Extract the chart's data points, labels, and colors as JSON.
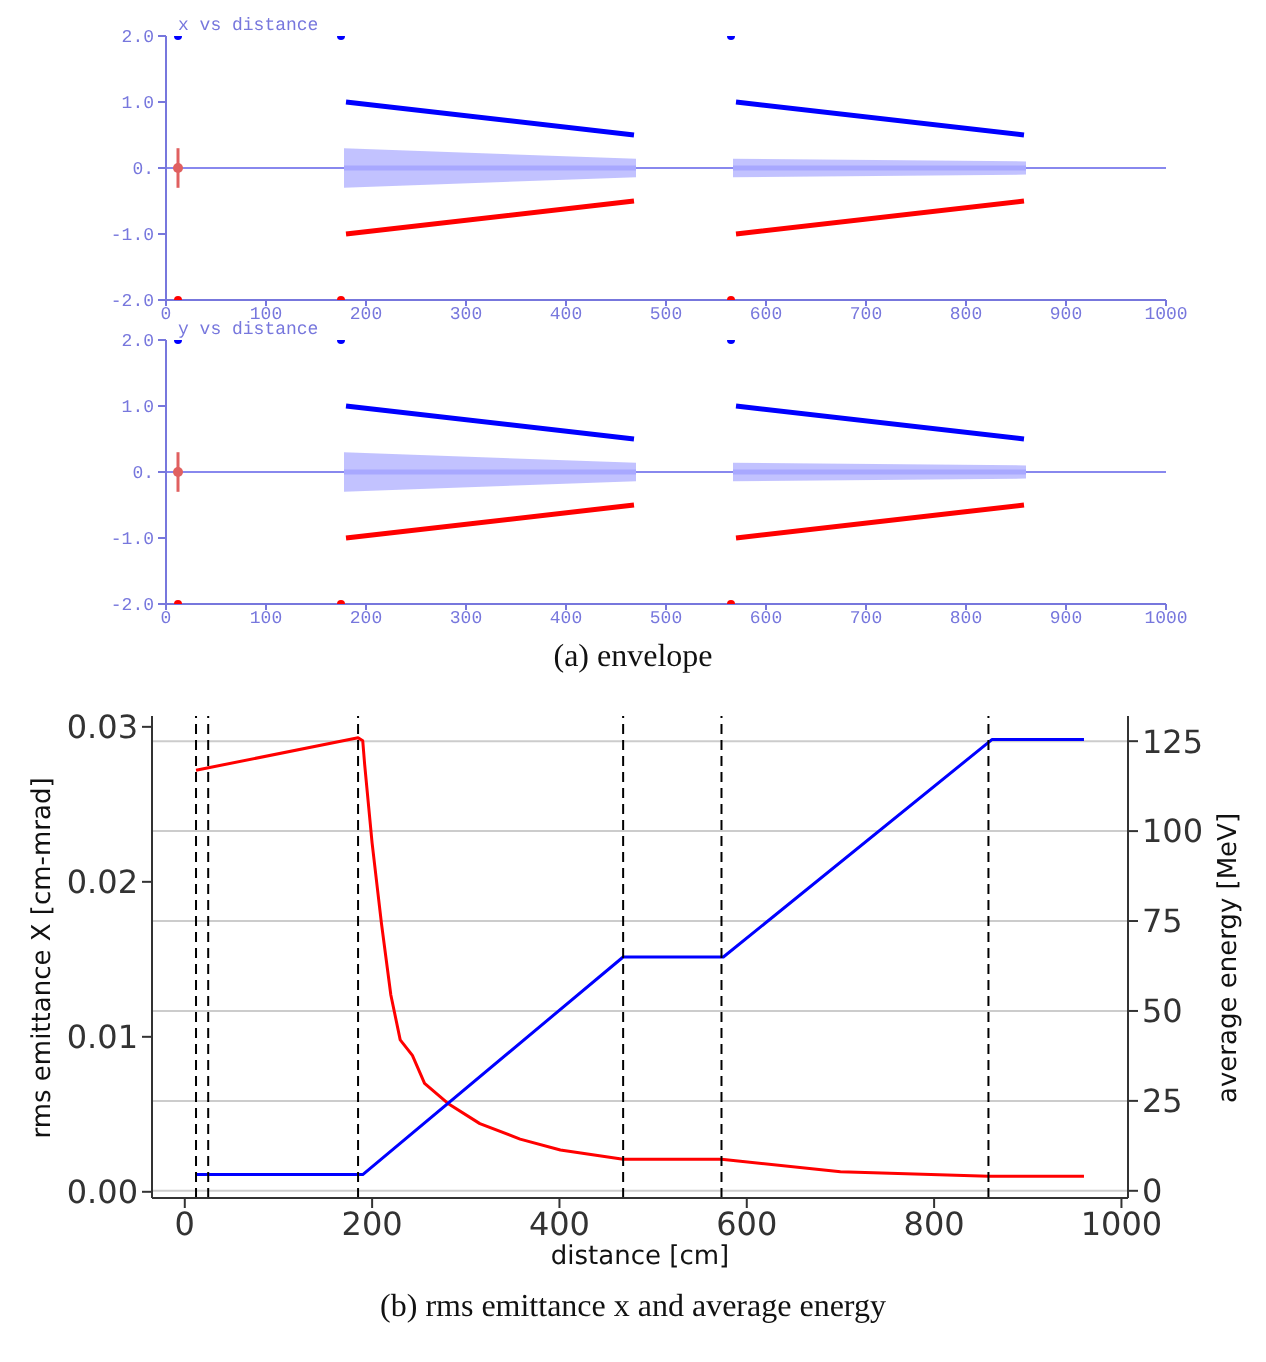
{
  "chart_data": [
    {
      "type": "line",
      "title": "x vs distance",
      "xlim": [
        0,
        1000
      ],
      "xticks": [
        0,
        100,
        200,
        300,
        400,
        500,
        600,
        700,
        800,
        900,
        1000
      ],
      "ylim": [
        -2,
        2
      ],
      "yticks": [
        {
          "value": -2,
          "label": "-2.0"
        },
        {
          "value": -1,
          "label": "-1.0"
        },
        {
          "value": 0,
          "label": "0."
        },
        {
          "value": 1,
          "label": "1.0"
        },
        {
          "value": 2,
          "label": "2.0"
        }
      ],
      "ref_lines": [
        {
          "axis": "y",
          "value": 0,
          "color": "#8888ee"
        }
      ],
      "series": [
        {
          "color": "#a8a8ff",
          "x": [
            178,
            470,
            518,
            567,
            860
          ],
          "values": [
            0,
            0,
            null,
            0,
            0
          ],
          "lower": [
            -0.3,
            -0.14,
            null,
            -0.14,
            -0.1
          ],
          "upper": [
            0.3,
            0.14,
            null,
            0.14,
            0.1
          ]
        },
        {
          "type": "scatter",
          "color": "#e06060",
          "x": [
            12
          ],
          "values": [
            0
          ],
          "errors": [
            0.3
          ]
        },
        {
          "color": "#0000ff",
          "x": [
            180,
            468,
            519,
            570,
            858
          ],
          "values": [
            1.0,
            0.5,
            null,
            1.0,
            0.5
          ]
        },
        {
          "color": "#ff0000",
          "x": [
            180,
            468,
            519,
            570,
            858
          ],
          "values": [
            -1.0,
            -0.5,
            null,
            -1.0,
            -0.5
          ]
        },
        {
          "type": "scatter",
          "color": "#0000ff",
          "x": [
            12,
            175,
            565
          ],
          "values": [
            2,
            2,
            2
          ]
        },
        {
          "type": "scatter",
          "color": "#ff0000",
          "x": [
            12,
            175,
            565
          ],
          "values": [
            -2,
            -2,
            -2
          ]
        }
      ]
    },
    {
      "type": "line",
      "title": "y vs distance",
      "xlim": [
        0,
        1000
      ],
      "xticks": [
        0,
        100,
        200,
        300,
        400,
        500,
        600,
        700,
        800,
        900,
        1000
      ],
      "ylim": [
        -2,
        2
      ],
      "yticks": [
        {
          "value": -2,
          "label": "-2.0"
        },
        {
          "value": -1,
          "label": "-1.0"
        },
        {
          "value": 0,
          "label": "0."
        },
        {
          "value": 1,
          "label": "1.0"
        },
        {
          "value": 2,
          "label": "2.0"
        }
      ],
      "annotations": [
        "(a) envelope"
      ],
      "ref_lines": [
        {
          "axis": "y",
          "value": 0,
          "color": "#8888ee"
        }
      ],
      "series": [
        {
          "color": "#a8a8ff",
          "x": [
            178,
            470,
            518,
            567,
            860
          ],
          "values": [
            0,
            0,
            null,
            0,
            0
          ],
          "lower": [
            -0.3,
            -0.14,
            null,
            -0.14,
            -0.1
          ],
          "upper": [
            0.3,
            0.14,
            null,
            0.14,
            0.1
          ]
        },
        {
          "type": "scatter",
          "color": "#e06060",
          "x": [
            12
          ],
          "values": [
            0
          ],
          "errors": [
            0.3
          ]
        },
        {
          "color": "#0000ff",
          "x": [
            180,
            468,
            519,
            570,
            858
          ],
          "values": [
            1.0,
            0.5,
            null,
            1.0,
            0.5
          ]
        },
        {
          "color": "#ff0000",
          "x": [
            180,
            468,
            519,
            570,
            858
          ],
          "values": [
            -1.0,
            -0.5,
            null,
            -1.0,
            -0.5
          ]
        },
        {
          "type": "scatter",
          "color": "#0000ff",
          "x": [
            12,
            175,
            565
          ],
          "values": [
            2,
            2,
            2
          ]
        },
        {
          "type": "scatter",
          "color": "#ff0000",
          "x": [
            12,
            175,
            565
          ],
          "values": [
            -2,
            -2,
            -2
          ]
        }
      ]
    },
    {
      "type": "line",
      "xlabel": "distance [cm]",
      "ylabel": "rms emittance X [cm-mrad]",
      "y2label": "average energy [MeV]",
      "xlim": [
        -35,
        1007
      ],
      "xticks": [
        0,
        200,
        400,
        600,
        800,
        1000
      ],
      "ylim": [
        -0.0004,
        0.0307
      ],
      "yticks": [
        {
          "value": 0,
          "label": "0.00"
        },
        {
          "value": 0.01,
          "label": "0.01"
        },
        {
          "value": 0.02,
          "label": "0.02"
        },
        {
          "value": 0.03,
          "label": "0.03"
        }
      ],
      "y2lim": [
        -2,
        132
      ],
      "y2ticks": [
        0,
        25,
        50,
        75,
        100,
        125
      ],
      "grid": "y",
      "annotations": [
        "(b)  rms emittance x and average energy"
      ],
      "ref_lines": [
        {
          "axis": "x",
          "value": 12,
          "color": "#000000",
          "line_style": "dashed"
        },
        {
          "axis": "x",
          "value": 25,
          "color": "#000000",
          "line_style": "dashed"
        },
        {
          "axis": "x",
          "value": 185,
          "color": "#000000",
          "line_style": "dashed"
        },
        {
          "axis": "x",
          "value": 468,
          "color": "#000000",
          "line_style": "dashed"
        },
        {
          "axis": "x",
          "value": 573,
          "color": "#000000",
          "line_style": "dashed"
        },
        {
          "axis": "x",
          "value": 858,
          "color": "#000000",
          "line_style": "dashed"
        }
      ],
      "series": [
        {
          "color": "#ff0000",
          "x": [
            12,
            185,
            190,
            192,
            200,
            210,
            220,
            230,
            243,
            256,
            281,
            315,
            358,
            401,
            468,
            573,
            700,
            858,
            960
          ],
          "values": [
            0.0272,
            0.0293,
            0.0291,
            0.0276,
            0.0225,
            0.0173,
            0.0127,
            0.0098,
            0.0088,
            0.007,
            0.0057,
            0.0044,
            0.0034,
            0.0027,
            0.0021,
            0.0021,
            0.0013,
            0.001,
            0.001
          ]
        },
        {
          "color": "#0000ff",
          "axis": "y2",
          "x": [
            12,
            190,
            468,
            575,
            862,
            960
          ],
          "values": [
            4.5,
            4.5,
            65,
            65,
            125.5,
            125.5
          ]
        }
      ]
    }
  ]
}
